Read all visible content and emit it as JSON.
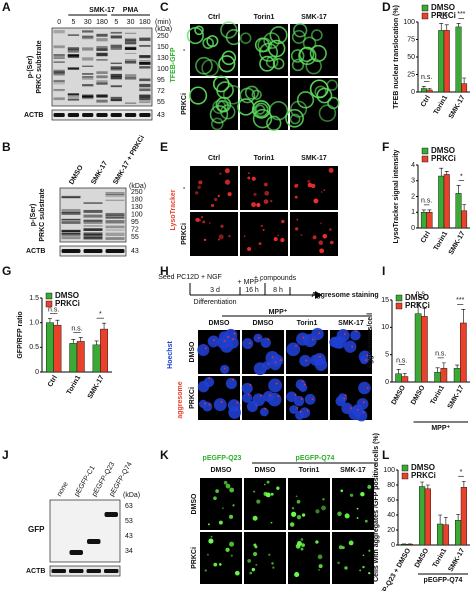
{
  "panels": {
    "A": {
      "label": "A",
      "group_headers": [
        "SMK-17",
        "PMA"
      ],
      "lanes": [
        "0",
        "5",
        "30",
        "180",
        "5",
        "30",
        "180"
      ],
      "unit": "(min)",
      "ylabel": [
        "p-(Ser)",
        "PRKC substrate"
      ],
      "markers_unit": "(kDa)",
      "markers": [
        "250",
        "150",
        "130",
        "100",
        "95",
        "72",
        "55",
        "43"
      ],
      "loading": "ACTB"
    },
    "B": {
      "label": "B",
      "lanes": [
        "DMSO",
        "SMK-17",
        "SMK-17 + PRKCi"
      ],
      "ylabel": [
        "p-(Ser)",
        "PRKC substrate"
      ],
      "markers_unit": "(kDa)",
      "markers": [
        "250",
        "180",
        "130",
        "100",
        "95",
        "72",
        "55",
        "43"
      ],
      "loading": "ACTB"
    },
    "C": {
      "label": "C",
      "stain": "TFEB-GFP",
      "columns": [
        "Ctrl",
        "Torin1",
        "SMK-17"
      ],
      "rows": [
        "-",
        "PRKCi"
      ]
    },
    "E": {
      "label": "E",
      "stain": "LysoTracker",
      "columns": [
        "Ctrl",
        "Torin1",
        "SMK-17"
      ],
      "rows": [
        "-",
        "PRKCi"
      ]
    },
    "H": {
      "label": "H",
      "steps": [
        "Seed PC12D + NGF",
        "+ MPP⁺",
        "+ compounds"
      ],
      "durations": [
        "3 d",
        "16 h",
        "8 h"
      ],
      "phase": "Differentiation",
      "endpoint": "Aggresome staining",
      "treatment": "MPP⁺",
      "columns": [
        "DMSO",
        "DMSO",
        "Torin1",
        "SMK-17"
      ],
      "rows": [
        "DMSO",
        "PRKCi"
      ],
      "stains": [
        "Hoechst",
        "aggresome"
      ]
    },
    "J": {
      "label": "J",
      "lanes": [
        "none",
        "pEGFP-C1",
        "pEGFP-Q23",
        "pEGFP-Q74"
      ],
      "bands": [
        "GFP",
        "ACTB"
      ],
      "markers_unit": "(kDa)",
      "markers": [
        "63",
        "53",
        "43",
        "34"
      ]
    },
    "K": {
      "label": "K",
      "group_headers": [
        "pEGFP-Q23",
        "pEGFP-Q74"
      ],
      "columns": [
        "DMSO",
        "DMSO",
        "Torin1",
        "SMK-17"
      ],
      "rows": [
        "DMSO",
        "PRKCi"
      ]
    }
  },
  "chart_data": [
    {
      "label": "D",
      "type": "bar",
      "ylabel": "TFEB nuclear translocation (%)",
      "categories": [
        "Ctrl",
        "Torin1",
        "SMK-17"
      ],
      "series": [
        {
          "name": "DMSO",
          "color": "#3aa935",
          "values": [
            5,
            88,
            93
          ],
          "errors": [
            3,
            10,
            5
          ]
        },
        {
          "name": "PRKCi",
          "color": "#e8412c",
          "values": [
            3,
            88,
            12
          ],
          "errors": [
            2,
            8,
            8
          ]
        }
      ],
      "ylim": [
        0,
        100
      ],
      "yticks": [
        0,
        25,
        50,
        75,
        100
      ],
      "annotations": [
        "n.s.",
        "n.s.",
        "***"
      ]
    },
    {
      "label": "F",
      "type": "bar",
      "ylabel": "LysoTracker signal intensity",
      "categories": [
        "Ctrl",
        "Torin1",
        "SMK-17"
      ],
      "series": [
        {
          "name": "DMSO",
          "color": "#3aa935",
          "values": [
            1.0,
            3.3,
            2.2
          ],
          "errors": [
            0.15,
            0.5,
            0.5
          ]
        },
        {
          "name": "PRKCi",
          "color": "#e8412c",
          "values": [
            1.0,
            3.4,
            1.1
          ],
          "errors": [
            0.15,
            0.2,
            0.4
          ]
        }
      ],
      "ylim": [
        0,
        4
      ],
      "yticks": [
        0,
        1,
        2,
        3,
        4
      ],
      "annotations": [
        "n.s.",
        null,
        "*"
      ]
    },
    {
      "label": "G",
      "type": "bar",
      "ylabel": "GFP/RFP ratio",
      "categories": [
        "Ctrl",
        "Torin1",
        "SMK-17"
      ],
      "series": [
        {
          "name": "DMSO",
          "color": "#3aa935",
          "values": [
            1.0,
            0.58,
            0.55
          ],
          "errors": [
            0.08,
            0.08,
            0.08
          ]
        },
        {
          "name": "PRKCi",
          "color": "#e8412c",
          "values": [
            0.95,
            0.62,
            0.87
          ],
          "errors": [
            0.1,
            0.08,
            0.12
          ]
        }
      ],
      "ylim": [
        0,
        1.5
      ],
      "yticks": [
        0,
        0.5,
        {
          "value": 1,
          "label": "1.0"
        },
        1.5
      ],
      "annotations": [
        "n.s.",
        "n.s.",
        "*"
      ]
    },
    {
      "label": "I",
      "type": "bar",
      "ylabel": "Aggresomes/cell",
      "categories": [
        "DMSO",
        "DMSO",
        "Torin1",
        "SMK-17"
      ],
      "group_label": "MPP⁺",
      "series": [
        {
          "name": "DMSO",
          "color": "#3aa935",
          "values": [
            1.5,
            12.5,
            1.8,
            2.5
          ],
          "errors": [
            0.8,
            2,
            0.8,
            0.6
          ]
        },
        {
          "name": "PRKCi",
          "color": "#e8412c",
          "values": [
            1.0,
            12.0,
            2.5,
            10.8
          ],
          "errors": [
            0.6,
            1.5,
            1,
            2.5
          ]
        }
      ],
      "ylim": [
        0,
        15
      ],
      "yticks": [
        0,
        5,
        10,
        15
      ],
      "annotations": [
        "n.s.",
        "n.s.",
        "n.s.",
        "***"
      ]
    },
    {
      "label": "L",
      "type": "bar",
      "ylabel": "Cells with aggregates /GFP positive cells (%)",
      "categories": [
        "pEGFP-Q23 + DMSO",
        "DMSO",
        "Torin1",
        "SMK-17"
      ],
      "group_label": "pEGFP-Q74",
      "series": [
        {
          "name": "DMSO",
          "color": "#3aa935",
          "values": [
            1,
            78,
            28,
            33
          ],
          "errors": [
            0.5,
            6,
            12,
            8
          ]
        },
        {
          "name": "PRKCi",
          "color": "#e8412c",
          "values": [
            1,
            75,
            27,
            77
          ],
          "errors": [
            0.5,
            5,
            10,
            8
          ]
        }
      ],
      "ylim": [
        0,
        100
      ],
      "yticks": [
        0,
        20,
        40,
        60,
        80,
        100
      ],
      "annotations": [
        null,
        null,
        null,
        "*"
      ]
    }
  ]
}
